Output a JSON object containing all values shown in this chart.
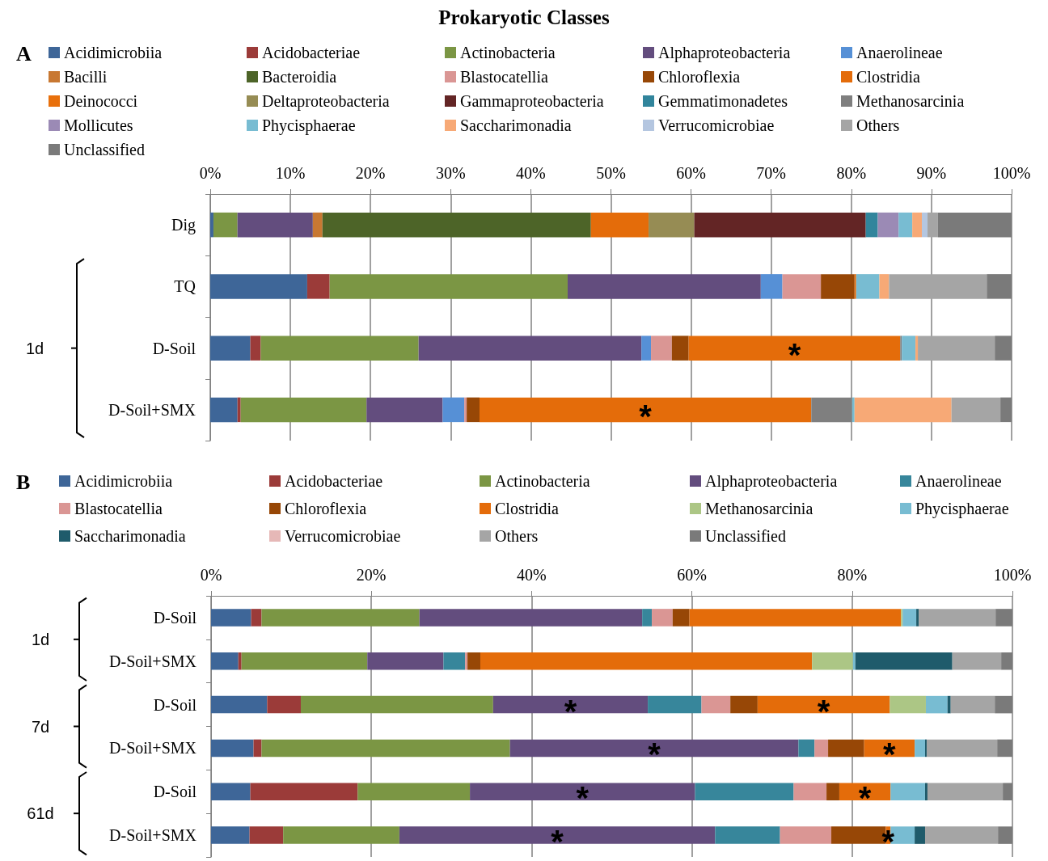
{
  "chart_data": [
    {
      "type": "bar",
      "title": "Prokaryotic Classes",
      "orientation": "horizontal",
      "stacked": true,
      "grid": "x",
      "legend": "top",
      "categories": [
        "Dig",
        "TQ",
        "D-Soil",
        "D-Soil+SMX"
      ],
      "xlim": [
        0,
        100
      ],
      "xticks": [
        {
          "value": 0,
          "label": "0%"
        },
        {
          "value": 10,
          "label": "10%"
        },
        {
          "value": 20,
          "label": "20%"
        },
        {
          "value": 30,
          "label": "30%"
        },
        {
          "value": 40,
          "label": "40%"
        },
        {
          "value": 50,
          "label": "50%"
        },
        {
          "value": 60,
          "label": "60%"
        },
        {
          "value": 70,
          "label": "70%"
        },
        {
          "value": 80,
          "label": "80%"
        },
        {
          "value": 90,
          "label": "90%"
        },
        {
          "value": 100,
          "label": "100%"
        }
      ],
      "series": [
        {
          "name": "Acidimicrobiia",
          "color": "#3e6698",
          "values": [
            0.4,
            12.1,
            5.0,
            3.4
          ]
        },
        {
          "name": "Acidobacteriae",
          "color": "#9b3b39",
          "values": [
            null,
            2.8,
            1.3,
            0.4
          ]
        },
        {
          "name": "Actinobacteria",
          "color": "#7b9644",
          "values": [
            3.0,
            29.7,
            19.7,
            15.7
          ]
        },
        {
          "name": "Alphaproteobacteria",
          "color": "#634d7e",
          "values": [
            9.4,
            24.1,
            27.8,
            9.5
          ]
        },
        {
          "name": "Anaerolineae",
          "color": "#5690d6",
          "values": [
            null,
            2.7,
            1.2,
            2.7
          ]
        },
        {
          "name": "Bacilli",
          "color": "#c87832",
          "values": [
            1.2,
            null,
            null,
            null
          ]
        },
        {
          "name": "Bacteroidia",
          "color": "#4d6428",
          "values": [
            33.5,
            null,
            null,
            null
          ]
        },
        {
          "name": "Blastocatellia",
          "color": "#da9694",
          "values": [
            null,
            4.8,
            2.6,
            0.3
          ]
        },
        {
          "name": "Chloroflexia",
          "color": "#974706",
          "values": [
            null,
            4.2,
            2.1,
            1.6
          ]
        },
        {
          "name": "Clostridia",
          "color": "#e46c0a",
          "values": [
            7.2,
            0.2,
            26.4,
            41.4
          ]
        },
        {
          "name": "Deinococci",
          "color": "#e8700c",
          "values": [
            null,
            null,
            null,
            null
          ]
        },
        {
          "name": "Deltaproteobacteria",
          "color": "#968c54",
          "values": [
            5.7,
            null,
            null,
            null
          ]
        },
        {
          "name": "Gammaproteobacteria",
          "color": "#632525",
          "values": [
            21.4,
            null,
            null,
            null
          ]
        },
        {
          "name": "Gemmatimonadetes",
          "color": "#31859c",
          "values": [
            1.5,
            null,
            null,
            null
          ]
        },
        {
          "name": "Methanosarcinia",
          "color": "#7f7f7f",
          "values": [
            null,
            null,
            0.2,
            5.1
          ]
        },
        {
          "name": "Mollicutes",
          "color": "#9b8ab5",
          "values": [
            2.6,
            null,
            null,
            null
          ]
        },
        {
          "name": "Phycisphaerae",
          "color": "#78bcd2",
          "values": [
            1.7,
            2.9,
            1.7,
            0.3
          ]
        },
        {
          "name": "Saccharimonadia",
          "color": "#f7a976",
          "values": [
            1.2,
            1.2,
            0.3,
            12.1
          ]
        },
        {
          "name": "Verrucomicrobiae",
          "color": "#b4c6e0",
          "values": [
            0.7,
            null,
            null,
            null
          ]
        },
        {
          "name": "Others",
          "color": "#a5a5a5",
          "values": [
            1.3,
            12.2,
            9.6,
            6.1
          ]
        },
        {
          "name": "Unclassified",
          "color": "#7a7a7a",
          "values": [
            9.2,
            3.1,
            2.1,
            1.4
          ]
        }
      ],
      "annotations": [
        "A",
        "1d",
        "*",
        "*"
      ]
    },
    {
      "type": "bar",
      "orientation": "horizontal",
      "stacked": true,
      "grid": "x",
      "legend": "top",
      "categories": [
        "D-Soil",
        "D-Soil+SMX",
        "D-Soil",
        "D-Soil+SMX",
        "D-Soil",
        "D-Soil+SMX"
      ],
      "xlim": [
        0,
        100
      ],
      "xticks": [
        {
          "value": 0,
          "label": "0%"
        },
        {
          "value": 20,
          "label": "20%"
        },
        {
          "value": 40,
          "label": "40%"
        },
        {
          "value": 60,
          "label": "60%"
        },
        {
          "value": 80,
          "label": "80%"
        },
        {
          "value": 100,
          "label": "100%"
        }
      ],
      "series": [
        {
          "name": "Acidimicrobiia",
          "color": "#3e6698",
          "values": [
            5.0,
            3.4,
            7.0,
            5.3,
            4.9,
            4.8
          ]
        },
        {
          "name": "Acidobacteriae",
          "color": "#9b3b39",
          "values": [
            1.3,
            0.4,
            4.2,
            1.0,
            13.4,
            4.2
          ]
        },
        {
          "name": "Actinobacteria",
          "color": "#7b9644",
          "values": [
            19.7,
            15.7,
            24.0,
            31.0,
            14.0,
            14.5
          ]
        },
        {
          "name": "Alphaproteobacteria",
          "color": "#634d7e",
          "values": [
            27.8,
            9.5,
            19.3,
            36.0,
            28.1,
            39.4
          ]
        },
        {
          "name": "Anaerolineae",
          "color": "#37869b",
          "values": [
            1.2,
            2.7,
            6.7,
            2.0,
            12.3,
            8.1
          ]
        },
        {
          "name": "Blastocatellia",
          "color": "#da9694",
          "values": [
            2.6,
            0.3,
            3.6,
            1.7,
            4.1,
            6.4
          ]
        },
        {
          "name": "Chloroflexia",
          "color": "#974706",
          "values": [
            2.1,
            1.6,
            3.4,
            4.5,
            1.6,
            6.8
          ]
        },
        {
          "name": "Clostridia",
          "color": "#e46c0a",
          "values": [
            26.4,
            41.4,
            16.5,
            6.3,
            6.4,
            0.6
          ]
        },
        {
          "name": "Methanosarcinia",
          "color": "#acc685",
          "values": [
            0.2,
            5.1,
            4.5,
            null,
            null,
            null
          ]
        },
        {
          "name": "Phycisphaerae",
          "color": "#78bcd2",
          "values": [
            1.7,
            0.3,
            2.7,
            1.3,
            4.3,
            3.0
          ]
        },
        {
          "name": "Saccharimonadia",
          "color": "#1f5b6b",
          "values": [
            0.3,
            12.1,
            0.4,
            0.2,
            0.3,
            1.3
          ]
        },
        {
          "name": "Verrucomicrobiae",
          "color": "#e6b8b7",
          "values": [
            null,
            null,
            null,
            null,
            null,
            null
          ]
        },
        {
          "name": "Others",
          "color": "#a5a5a5",
          "values": [
            9.6,
            6.1,
            5.5,
            8.8,
            9.4,
            9.1
          ]
        },
        {
          "name": "Unclassified",
          "color": "#7a7a7a",
          "values": [
            2.1,
            1.4,
            2.2,
            1.9,
            1.2,
            1.8
          ]
        }
      ],
      "annotations": [
        "B",
        "1d",
        "7d",
        "61d",
        "*",
        "*",
        "*",
        "*",
        "*",
        "*",
        "*",
        "*"
      ]
    }
  ]
}
